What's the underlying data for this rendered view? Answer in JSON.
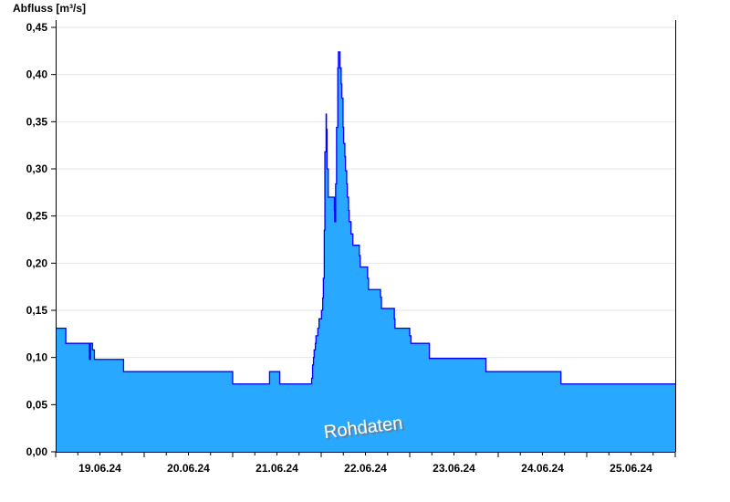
{
  "chart_data": {
    "type": "area",
    "step": true,
    "title": "",
    "ylabel": "Abfluss [m³/s]",
    "xlabel": "",
    "watermark": "Rohdaten",
    "xlim": [
      "2024-06-19T00:00",
      "2024-06-26T00:00"
    ],
    "ylim": [
      0,
      0.45
    ],
    "yticks": [
      "0,00",
      "0,05",
      "0,10",
      "0,15",
      "0,20",
      "0,25",
      "0,30",
      "0,35",
      "0,40",
      "0,45"
    ],
    "xtick_labels": [
      "19.06.24",
      "20.06.24",
      "21.06.24",
      "22.06.24",
      "23.06.24",
      "24.06.24",
      "25.06.24"
    ],
    "grid": {
      "horizontal": true,
      "vertical": false
    },
    "colors": {
      "fill": "#29a8ff",
      "line": "#0000ff",
      "day_lines": "#1b6a9c",
      "grid": "#e6e6e6"
    },
    "points": [
      [
        "2024-06-19T00:00",
        0.131
      ],
      [
        "2024-06-19T02:45",
        0.115
      ],
      [
        "2024-06-19T09:10",
        0.098
      ],
      [
        "2024-06-19T09:25",
        0.115
      ],
      [
        "2024-06-19T10:00",
        0.108
      ],
      [
        "2024-06-19T10:30",
        0.098
      ],
      [
        "2024-06-19T18:25",
        0.085
      ],
      [
        "2024-06-21T00:00",
        0.072
      ],
      [
        "2024-06-21T10:00",
        0.085
      ],
      [
        "2024-06-21T12:45",
        0.072
      ],
      [
        "2024-06-21T21:25",
        0.078
      ],
      [
        "2024-06-21T21:40",
        0.092
      ],
      [
        "2024-06-21T21:55",
        0.1
      ],
      [
        "2024-06-21T22:05",
        0.108
      ],
      [
        "2024-06-21T22:25",
        0.115
      ],
      [
        "2024-06-21T22:35",
        0.123
      ],
      [
        "2024-06-21T23:05",
        0.131
      ],
      [
        "2024-06-21T23:25",
        0.141
      ],
      [
        "2024-06-22T00:05",
        0.15
      ],
      [
        "2024-06-22T00:25",
        0.163
      ],
      [
        "2024-06-22T00:35",
        0.184
      ],
      [
        "2024-06-22T00:50",
        0.235
      ],
      [
        "2024-06-22T01:00",
        0.318
      ],
      [
        "2024-06-22T01:20",
        0.358
      ],
      [
        "2024-06-22T01:25",
        0.342
      ],
      [
        "2024-06-22T01:35",
        0.3
      ],
      [
        "2024-06-22T01:55",
        0.27
      ],
      [
        "2024-06-22T03:35",
        0.256
      ],
      [
        "2024-06-22T03:40",
        0.244
      ],
      [
        "2024-06-22T03:55",
        0.284
      ],
      [
        "2024-06-22T04:10",
        0.344
      ],
      [
        "2024-06-22T04:30",
        0.407
      ],
      [
        "2024-06-22T04:40",
        0.424
      ],
      [
        "2024-06-22T05:05",
        0.407
      ],
      [
        "2024-06-22T05:25",
        0.39
      ],
      [
        "2024-06-22T05:35",
        0.375
      ],
      [
        "2024-06-22T05:55",
        0.344
      ],
      [
        "2024-06-22T06:05",
        0.327
      ],
      [
        "2024-06-22T06:25",
        0.313
      ],
      [
        "2024-06-22T06:35",
        0.298
      ],
      [
        "2024-06-22T06:55",
        0.284
      ],
      [
        "2024-06-22T07:05",
        0.27
      ],
      [
        "2024-06-22T07:25",
        0.256
      ],
      [
        "2024-06-22T07:35",
        0.244
      ],
      [
        "2024-06-22T08:05",
        0.231
      ],
      [
        "2024-06-22T08:35",
        0.219
      ],
      [
        "2024-06-22T10:20",
        0.208
      ],
      [
        "2024-06-22T10:35",
        0.196
      ],
      [
        "2024-06-22T12:35",
        0.184
      ],
      [
        "2024-06-22T12:50",
        0.172
      ],
      [
        "2024-06-22T16:05",
        0.164
      ],
      [
        "2024-06-22T16:20",
        0.152
      ],
      [
        "2024-06-22T19:50",
        0.141
      ],
      [
        "2024-06-22T20:00",
        0.131
      ],
      [
        "2024-06-23T00:00",
        0.123
      ],
      [
        "2024-06-23T00:20",
        0.115
      ],
      [
        "2024-06-23T05:20",
        0.099
      ],
      [
        "2024-06-23T20:40",
        0.085
      ],
      [
        "2024-06-24T17:00",
        0.072
      ],
      [
        "2024-06-26T00:00",
        0.072
      ]
    ]
  }
}
